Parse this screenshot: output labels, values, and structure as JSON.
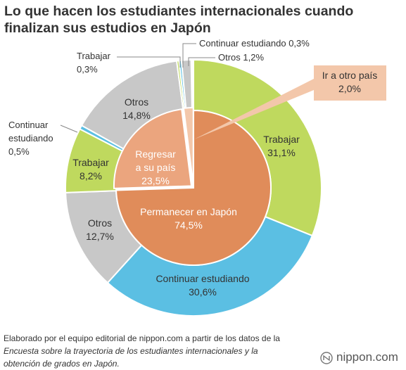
{
  "title_line1": "Lo que hacen los estudiantes internacionales cuando",
  "title_line2": "finalizan sus estudios en Japón",
  "source_line1": "Elaborado por el equipo editorial de nippon.com a partir de los datos de la",
  "source_line2": "Encuesta sobre la trayectoria de los estudiantes internacionales y la",
  "source_line3": "obtención de grados en Japón.",
  "brand": "nippon.com",
  "chart_data": {
    "type": "pie",
    "subtype": "nested-donut",
    "inner": [
      {
        "label": "Permanecer en Japón",
        "value": 74.5,
        "value_text": "74,5%",
        "color": "#e08c5a"
      },
      {
        "label_lines": [
          "Regresar",
          "a su país"
        ],
        "value": 23.5,
        "value_text": "23,5%",
        "color": "#eba57e"
      },
      {
        "label": "Ir a otro país",
        "value": 2.0,
        "value_text": "2,0%",
        "color": "#f3c7aa"
      }
    ],
    "outer": [
      {
        "group": "Permanecer en Japón",
        "label": "Trabajar",
        "value": 31.1,
        "value_text": "31,1%",
        "color": "#bfd95e"
      },
      {
        "group": "Permanecer en Japón",
        "label": "Continuar estudiando",
        "value": 30.6,
        "value_text": "30,6%",
        "color": "#5bbfe3"
      },
      {
        "group": "Permanecer en Japón",
        "label": "Otros",
        "value": 12.7,
        "value_text": "12,7%",
        "color": "#c8c8c8"
      },
      {
        "group": "Regresar a su país",
        "label": "Trabajar",
        "value": 8.2,
        "value_text": "8,2%",
        "color": "#bfd95e"
      },
      {
        "group": "Regresar a su país",
        "label": "Continuar estudiando",
        "value": 0.5,
        "value_text": "0,5%",
        "color": "#5bbfe3"
      },
      {
        "group": "Regresar a su país",
        "label": "Otros",
        "value": 14.8,
        "value_text": "14,8%",
        "color": "#c8c8c8"
      },
      {
        "group": "Ir a otro país",
        "label": "Trabajar",
        "value": 0.3,
        "value_text": "0,3%",
        "color": "#bfd95e"
      },
      {
        "group": "Ir a otro país",
        "label": "Continuar estudiando",
        "value": 0.3,
        "value_text": "0,3%",
        "color": "#5bbfe3"
      },
      {
        "group": "Ir a otro país",
        "label": "Otros",
        "value": 1.2,
        "value_text": "1,2%",
        "color": "#c8c8c8"
      }
    ]
  }
}
